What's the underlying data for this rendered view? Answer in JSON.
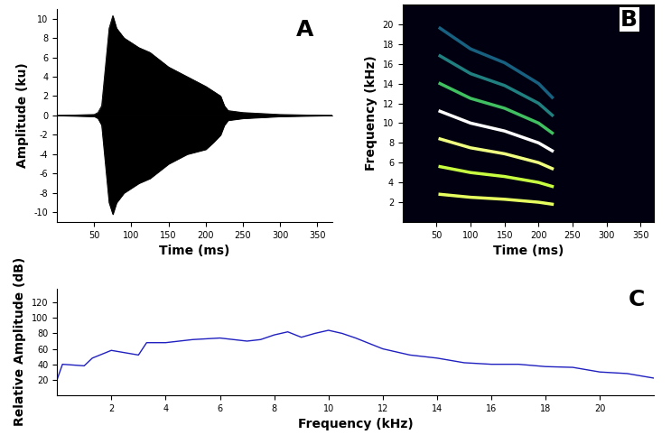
{
  "chart_data": [
    {
      "type": "area",
      "annotation": "A",
      "x_label": "Time (ms)",
      "y_label": "Amplitude (ku)",
      "xlim": [
        0,
        370
      ],
      "ylim": [
        -11,
        11
      ],
      "xticks": [
        50,
        100,
        150,
        200,
        250,
        300,
        350
      ],
      "yticks": [
        -10,
        -8,
        -6,
        -4,
        -2,
        0,
        2,
        4,
        6,
        8,
        10
      ],
      "x": [
        0,
        50,
        55,
        60,
        65,
        70,
        75,
        80,
        90,
        100,
        110,
        125,
        150,
        175,
        200,
        210,
        220,
        225,
        230,
        250,
        300,
        370
      ],
      "series": [
        {
          "color": "#000000",
          "values": [
            0,
            0.1,
            0.3,
            1,
            5,
            9,
            10.3,
            9,
            8,
            7.5,
            7,
            6.5,
            5,
            4,
            3,
            2.5,
            2,
            1,
            0.5,
            0.3,
            0.1,
            0
          ]
        },
        {
          "color": "#000000",
          "values": [
            0,
            -0.1,
            -0.3,
            -1,
            -5,
            -9,
            -10.2,
            -9,
            -8,
            -7.5,
            -7,
            -6.5,
            -5,
            -4,
            -3.5,
            -2.8,
            -2,
            -1,
            -0.5,
            -0.3,
            -0.1,
            0
          ]
        }
      ]
    },
    {
      "type": "line",
      "annotation": "B",
      "x_label": "Time (ms)",
      "y_label": "Frequency (kHz)",
      "xlim": [
        0,
        370
      ],
      "ylim": [
        0,
        22
      ],
      "xticks": [
        50,
        100,
        150,
        200,
        250,
        300,
        350
      ],
      "yticks": [
        2,
        4,
        6,
        8,
        10,
        12,
        14,
        16,
        18,
        20
      ],
      "x": [
        55,
        100,
        150,
        200,
        220
      ],
      "series": [
        {
          "color": "#e8ff60",
          "values": [
            2.8,
            2.5,
            2.3,
            2.0,
            1.8
          ]
        },
        {
          "color": "#c8ff40",
          "values": [
            5.6,
            5.0,
            4.6,
            4.0,
            3.6
          ]
        },
        {
          "color": "#f0ff80",
          "values": [
            8.4,
            7.5,
            6.9,
            6.0,
            5.4
          ]
        },
        {
          "color": "#ffffff",
          "values": [
            11.2,
            10.0,
            9.2,
            8.0,
            7.2
          ]
        },
        {
          "color": "#40c060",
          "values": [
            14.0,
            12.5,
            11.5,
            10.0,
            9.0
          ]
        },
        {
          "color": "#208080",
          "values": [
            16.8,
            15.0,
            13.8,
            12.0,
            10.8
          ]
        },
        {
          "color": "#186080",
          "values": [
            19.6,
            17.5,
            16.1,
            14.0,
            12.6
          ]
        }
      ]
    },
    {
      "type": "line",
      "annotation": "C",
      "x_label": "Frequency (kHz)",
      "y_label": "Relative Amplitude (dB)",
      "xlim": [
        0,
        22
      ],
      "ylim": [
        0,
        138
      ],
      "xticks": [
        2,
        4,
        6,
        8,
        10,
        12,
        14,
        16,
        18,
        20
      ],
      "yticks": [
        20,
        40,
        60,
        80,
        100,
        120
      ],
      "x": [
        0,
        0.2,
        1,
        1.3,
        2,
        2.5,
        3,
        3.3,
        4,
        5,
        6,
        7,
        7.5,
        8,
        8.5,
        9,
        9.5,
        10,
        10.5,
        11,
        12,
        13,
        14,
        15,
        16,
        17,
        18,
        19,
        20,
        21,
        22
      ],
      "values": [
        20,
        40,
        38,
        48,
        58,
        55,
        52,
        68,
        68,
        72,
        74,
        70,
        72,
        78,
        82,
        75,
        80,
        84,
        80,
        74,
        60,
        52,
        48,
        42,
        40,
        40,
        37,
        36,
        30,
        28,
        22
      ],
      "color": "#2020c0"
    }
  ]
}
